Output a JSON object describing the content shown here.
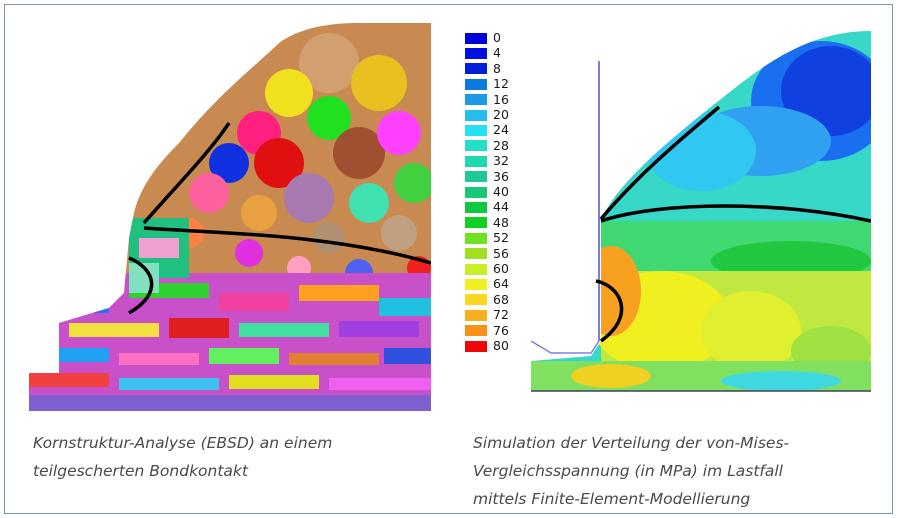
{
  "legend": {
    "values": [
      "0",
      "4",
      "8",
      "12",
      "16",
      "20",
      "24",
      "28",
      "32",
      "36",
      "40",
      "44",
      "48",
      "52",
      "56",
      "60",
      "64",
      "68",
      "72",
      "76",
      "80"
    ],
    "colors": [
      "#0000d8",
      "#0010e0",
      "#0020d8",
      "#0a7adf",
      "#1c9ae8",
      "#25bcf0",
      "#25e0f0",
      "#22e0c8",
      "#20d8b0",
      "#20c898",
      "#18c878",
      "#10c840",
      "#10d020",
      "#70e020",
      "#a0e020",
      "#c8f028",
      "#f0f020",
      "#f8d820",
      "#f8b020",
      "#f89018",
      "#f00808"
    ]
  },
  "captions": {
    "left": "Kornstruktur-Analyse (EBSD) an einem\nteilgescherten Bondkontakt",
    "right": "Simulation der Verteilung der von-Mises-\nVergleichsspannung (in MPa) im Lastfall\nmittels Finite-Element-Modellierung"
  },
  "images": {
    "left_alt": "EBSD grain structure map",
    "right_alt": "FEM von-Mises stress simulation"
  }
}
